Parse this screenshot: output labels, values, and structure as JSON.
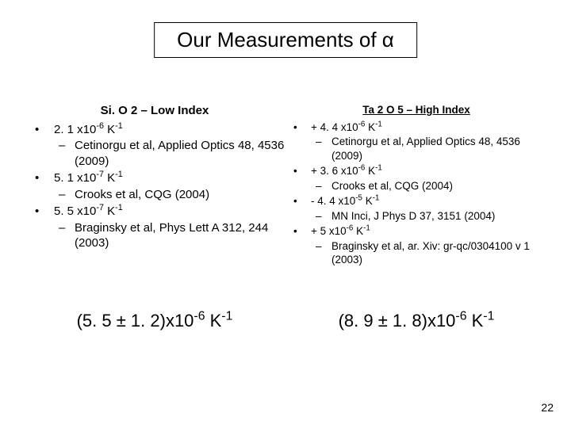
{
  "title": "Our Measurements of α",
  "pagenum": "22",
  "left": {
    "heading_html": "Si. O 2 – Low Index",
    "items": [
      {
        "value_html": "2. 1 x10<sup>-6</sup> K<sup>-1</sup>",
        "refs": [
          "Cetinorgu et al, Applied Optics 48, 4536 (2009)"
        ]
      },
      {
        "value_html": "5. 1 x10<sup>-7</sup> K<sup>-1</sup>",
        "refs": [
          "Crooks et al, CQG (2004)"
        ]
      },
      {
        "value_html": "5. 5 x10<sup>-7</sup> K<sup>-1</sup>",
        "refs": [
          "Braginsky et al, Phys Lett A 312, 244 (2003)"
        ]
      }
    ],
    "result_html": "(5. 5 ± 1. 2)x10<sup>-6</sup> K<sup>-1</sup>"
  },
  "right": {
    "heading_html": "Ta 2 O 5 – High Index",
    "items": [
      {
        "value_html": "+ 4. 4 x10<sup>-6</sup> K<sup>-1</sup>",
        "refs": [
          "Cetinorgu et al, Applied Optics 48, 4536 (2009)"
        ]
      },
      {
        "value_html": "+ 3. 6 x10<sup>-6</sup> K<sup>-1</sup>",
        "refs": [
          "Crooks et al, CQG (2004)"
        ]
      },
      {
        "value_html": "- 4. 4 x10<sup>-5</sup> K<sup>-1</sup>",
        "refs": [
          "MN Inci, J Phys D 37, 3151 (2004)"
        ]
      },
      {
        "value_html": "+ 5 x10<sup>-6</sup> K<sup>-1</sup>",
        "refs": [
          "Braginsky et al, ar. Xiv: gr-qc/0304100 v 1 (2003)"
        ]
      }
    ],
    "result_html": "(8. 9 ± 1. 8)x10<sup>-6</sup> K<sup>-1</sup>"
  }
}
